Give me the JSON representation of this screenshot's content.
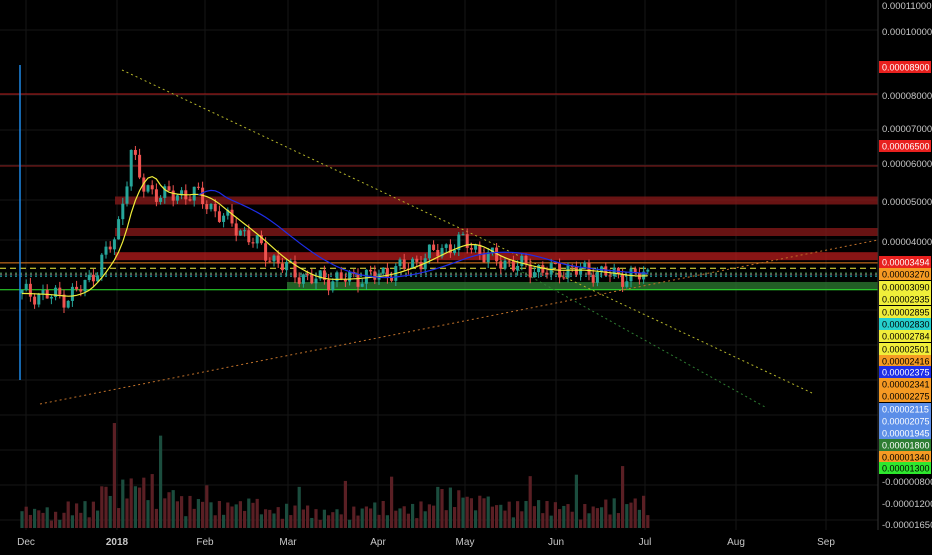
{
  "chart_data": {
    "type": "candlestick",
    "title": "",
    "xlabel": "",
    "ylabel": "",
    "x_axis": {
      "tick_labels": [
        "Dec",
        "2018",
        "Feb",
        "Mar",
        "Apr",
        "May",
        "Jun",
        "Jul",
        "Aug",
        "Sep"
      ],
      "bold_labels": [
        "2018"
      ]
    },
    "y_axis": {
      "range": [
        -1.78e-05,
        0.000117
      ],
      "tick_labels": [
        {
          "value": 0.00011,
          "text": "0.00011000"
        },
        {
          "value": 0.0001,
          "text": "0.00010000"
        },
        {
          "value": 8e-05,
          "text": "0.00008000"
        },
        {
          "value": 7e-05,
          "text": "0.00007000"
        },
        {
          "value": 6e-05,
          "text": "0.00006000"
        },
        {
          "value": 5e-05,
          "text": "0.00005000"
        },
        {
          "value": 4e-05,
          "text": "0.00004000"
        },
        {
          "value": -8e-06,
          "text": "-0.00000800"
        },
        {
          "value": -1.2e-05,
          "text": "-0.00001200"
        },
        {
          "value": -1.65e-05,
          "text": "-0.00001650"
        }
      ],
      "price_badges": [
        {
          "text": "0.00008900",
          "color": "#e8201e"
        },
        {
          "text": "0.00006500",
          "color": "#e8201e"
        },
        {
          "text": "0.00003494",
          "color": "#e8201e"
        },
        {
          "text": "0.00003270",
          "color": "#f59a23"
        },
        {
          "text": "0.00003090",
          "color": "#f0ee3a"
        },
        {
          "text": "0.00002935",
          "color": "#f0ee3a"
        },
        {
          "text": "0.00002895",
          "color": "#f0ee3a"
        },
        {
          "text": "0.00002830",
          "color": "#26d0ce"
        },
        {
          "text": "0.00002784",
          "color": "#f0ee3a"
        },
        {
          "text": "0.00002501",
          "color": "#f0ee3a"
        },
        {
          "text": "0.00002416",
          "color": "#f59a23"
        },
        {
          "text": "0.00002375",
          "color": "#1e2de8"
        },
        {
          "text": "0.00002341",
          "color": "#f59a23"
        },
        {
          "text": "0.00002275",
          "color": "#f59a23"
        },
        {
          "text": "0.00002115",
          "color": "#5b8ee8"
        },
        {
          "text": "0.00002075",
          "color": "#5b8ee8"
        },
        {
          "text": "0.00001945",
          "color": "#5b8ee8"
        },
        {
          "text": "0.00001800",
          "color": "#2e7d32"
        },
        {
          "text": "0.00001340",
          "color": "#f59a23"
        },
        {
          "text": "0.00001300",
          "color": "#2ee82e"
        }
      ]
    },
    "series": [
      {
        "kind": "ohlc",
        "x": [
          "2017-12-01",
          "2017-12-15",
          "2017-12-22",
          "2018-01-01",
          "2018-01-06",
          "2018-01-10",
          "2018-01-18",
          "2018-01-28",
          "2018-02-07",
          "2018-02-15",
          "2018-02-25",
          "2018-03-08",
          "2018-03-18",
          "2018-04-01",
          "2018-04-12",
          "2018-04-22",
          "2018-05-01",
          "2018-05-08",
          "2018-05-18",
          "2018-05-28",
          "2018-06-05",
          "2018-06-15",
          "2018-06-25",
          "2018-07-01"
        ],
        "close": [
          2.25e-05,
          2.12e-05,
          2.6e-05,
          4.2e-05,
          7e-05,
          5.8e-05,
          5.5e-05,
          5.6e-05,
          4.8e-05,
          4.2e-05,
          3.3e-05,
          2.72e-05,
          2.72e-05,
          2.85e-05,
          3.2e-05,
          3.7e-05,
          4e-05,
          3.5e-05,
          3.2e-05,
          3e-05,
          3.05e-05,
          2.95e-05,
          2.8e-05,
          2.88e-05
        ]
      },
      {
        "kind": "volume",
        "values": [
          0.4,
          0.3,
          0.5,
          0.9,
          1.0,
          0.8,
          0.6,
          0.5,
          0.55,
          0.4,
          0.45,
          0.35,
          0.4,
          0.5,
          0.45,
          0.5,
          0.75,
          0.6,
          0.5,
          0.55,
          0.5,
          0.45,
          0.55,
          0.6
        ]
      }
    ],
    "horizontal_levels": [
      {
        "price": 8.9e-05,
        "color": "#b71c1c",
        "style": "line"
      },
      {
        "price": 6.5e-05,
        "color": "#8b1a1a",
        "style": "line"
      },
      {
        "price": 5.35e-05,
        "color": "#8b1a1a",
        "style": "band"
      },
      {
        "price": 4.3e-05,
        "color": "#8b1a1a",
        "style": "band"
      },
      {
        "price": 3.494e-05,
        "color": "#b71c1c",
        "style": "band"
      },
      {
        "price": 3.27e-05,
        "color": "#e67e22",
        "style": "line"
      },
      {
        "price": 3.09e-05,
        "color": "#f0ee3a",
        "style": "dashed"
      },
      {
        "price": 2.935e-05,
        "color": "#2e7d32",
        "style": "dotted"
      },
      {
        "price": 2.895e-05,
        "color": "#888888",
        "style": "dotted"
      },
      {
        "price": 2.83e-05,
        "color": "#26d0ce",
        "style": "dotted"
      },
      {
        "price": 2.501e-05,
        "color": "#2e7d32",
        "style": "band"
      },
      {
        "price": 2.375e-05,
        "color": "#2ee82e",
        "style": "line"
      }
    ],
    "grid": true,
    "colors": {
      "up": "#26a69a",
      "down": "#ef5350",
      "background": "#000000",
      "ma": "#f0ee3a",
      "ma_slow": "#1e2de8"
    }
  }
}
